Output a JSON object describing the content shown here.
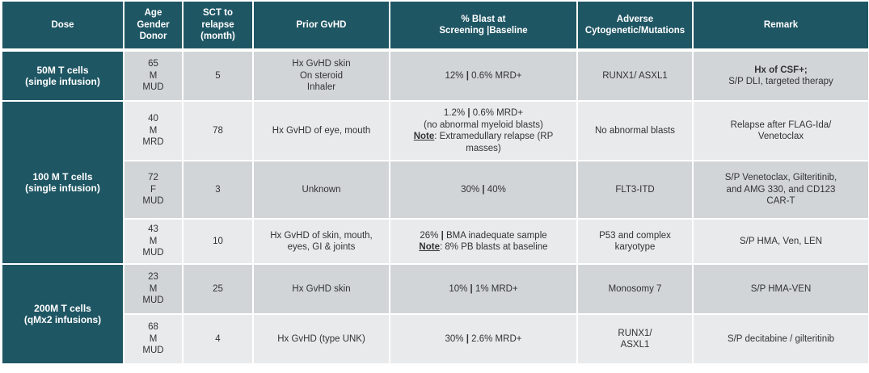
{
  "colors": {
    "header_bg": "#1f5664",
    "row_dark": "#d1d5d8",
    "row_light": "#e9eaeb"
  },
  "headers": [
    [
      "Dose"
    ],
    [
      "Age",
      "Gender",
      "Donor"
    ],
    [
      "SCT to",
      "relapse",
      "(month)"
    ],
    [
      "Prior GvHD"
    ],
    [
      "% Blast at",
      "Screening |Baseline"
    ],
    [
      "Adverse",
      "Cytogenetic/Mutations"
    ],
    [
      "Remark"
    ]
  ],
  "groups": [
    {
      "dose": [
        "50M T cells",
        "(single infusion)"
      ],
      "rows": [
        {
          "cells": [
            [
              [
                {
                  "t": "65"
                }
              ],
              [
                {
                  "t": "M"
                }
              ],
              [
                {
                  "t": "MUD"
                }
              ]
            ],
            [
              [
                {
                  "t": "5"
                }
              ]
            ],
            [
              [
                {
                  "t": "Hx GvHD skin"
                }
              ],
              [
                {
                  "t": "On steroid"
                }
              ],
              [
                {
                  "t": "Inhaler"
                }
              ]
            ],
            [
              [
                {
                  "t": "12% "
                },
                {
                  "t": "|",
                  "b": true
                },
                {
                  "t": " 0.6% MRD+"
                }
              ]
            ],
            [
              [
                {
                  "t": "RUNX1/ ASXL1"
                }
              ]
            ],
            [
              [
                {
                  "t": "Hx of CSF+;",
                  "b": true
                }
              ],
              [
                {
                  "t": "S/P DLI, targeted therapy"
                }
              ]
            ]
          ]
        }
      ]
    },
    {
      "dose": [
        "100 M T cells",
        "(single infusion)"
      ],
      "rows": [
        {
          "cells": [
            [
              [
                {
                  "t": "40"
                }
              ],
              [
                {
                  "t": "M"
                }
              ],
              [
                {
                  "t": "MRD"
                }
              ]
            ],
            [
              [
                {
                  "t": "78"
                }
              ]
            ],
            [
              [
                {
                  "t": "Hx GvHD of eye, mouth"
                }
              ]
            ],
            [
              [
                {
                  "t": "1.2%  "
                },
                {
                  "t": "|",
                  "b": true
                },
                {
                  "t": " 0.6% MRD+"
                }
              ],
              [
                {
                  "t": "(no abnormal myeloid blasts)"
                }
              ],
              [
                {
                  "t": "Note",
                  "b": true,
                  "u": true
                },
                {
                  "t": ": Extramedullary relapse (RP"
                }
              ],
              [
                {
                  "t": "masses)"
                }
              ]
            ],
            [
              [
                {
                  "t": "No abnormal blasts"
                }
              ]
            ],
            [
              [
                {
                  "t": "Relapse after FLAG-Ida/"
                }
              ],
              [
                {
                  "t": "Venetoclax"
                }
              ]
            ]
          ]
        },
        {
          "cells": [
            [
              [
                {
                  "t": "72"
                }
              ],
              [
                {
                  "t": "F"
                }
              ],
              [
                {
                  "t": "MUD"
                }
              ]
            ],
            [
              [
                {
                  "t": "3"
                }
              ]
            ],
            [
              [
                {
                  "t": "Unknown"
                }
              ]
            ],
            [
              [
                {
                  "t": "30% "
                },
                {
                  "t": "|",
                  "b": true
                },
                {
                  "t": " 40%"
                }
              ]
            ],
            [
              [
                {
                  "t": "FLT3-ITD"
                }
              ]
            ],
            [
              [
                {
                  "t": "S/P Venetoclax, Gilteritinib,"
                }
              ],
              [
                {
                  "t": "and AMG 330, and CD123"
                }
              ],
              [
                {
                  "t": "CAR-T"
                }
              ]
            ]
          ]
        },
        {
          "cells": [
            [
              [
                {
                  "t": "43"
                }
              ],
              [
                {
                  "t": "M"
                }
              ],
              [
                {
                  "t": "MUD"
                }
              ]
            ],
            [
              [
                {
                  "t": "10"
                }
              ]
            ],
            [
              [
                {
                  "t": "Hx GvHD of skin, mouth,"
                }
              ],
              [
                {
                  "t": "eyes, GI & joints"
                }
              ]
            ],
            [
              [
                {
                  "t": "26%  "
                },
                {
                  "t": "|",
                  "b": true
                },
                {
                  "t": "  BMA inadequate sample"
                }
              ],
              [
                {
                  "t": "Note",
                  "b": true,
                  "u": true
                },
                {
                  "t": ": 8% PB blasts at baseline"
                }
              ]
            ],
            [
              [
                {
                  "t": "P53 and complex"
                }
              ],
              [
                {
                  "t": "karyotype"
                }
              ]
            ],
            [
              [
                {
                  "t": "S/P HMA, Ven, LEN"
                }
              ]
            ]
          ]
        }
      ]
    },
    {
      "dose": [
        "200M T cells",
        "(qMx2 infusions)"
      ],
      "rows": [
        {
          "cells": [
            [
              [
                {
                  "t": "23"
                }
              ],
              [
                {
                  "t": "M"
                }
              ],
              [
                {
                  "t": "MUD"
                }
              ]
            ],
            [
              [
                {
                  "t": "25"
                }
              ]
            ],
            [
              [
                {
                  "t": "Hx GvHD skin"
                }
              ]
            ],
            [
              [
                {
                  "t": "10% "
                },
                {
                  "t": "|",
                  "b": true
                },
                {
                  "t": "  1% MRD+"
                }
              ]
            ],
            [
              [
                {
                  "t": "Monosomy 7"
                }
              ]
            ],
            [
              [
                {
                  "t": "S/P HMA-VEN"
                }
              ]
            ]
          ]
        },
        {
          "cells": [
            [
              [
                {
                  "t": "68"
                }
              ],
              [
                {
                  "t": "M"
                }
              ],
              [
                {
                  "t": "MUD"
                }
              ]
            ],
            [
              [
                {
                  "t": "4"
                }
              ]
            ],
            [
              [
                {
                  "t": "Hx GvHD (type UNK)"
                }
              ]
            ],
            [
              [
                {
                  "t": "30%  "
                },
                {
                  "t": "|",
                  "b": true
                },
                {
                  "t": "  2.6% MRD+"
                }
              ]
            ],
            [
              [
                {
                  "t": "RUNX1/"
                }
              ],
              [
                {
                  "t": "ASXL1"
                }
              ]
            ],
            [
              [
                {
                  "t": "S/P decitabine / gilteritinib"
                }
              ]
            ]
          ]
        }
      ]
    }
  ]
}
